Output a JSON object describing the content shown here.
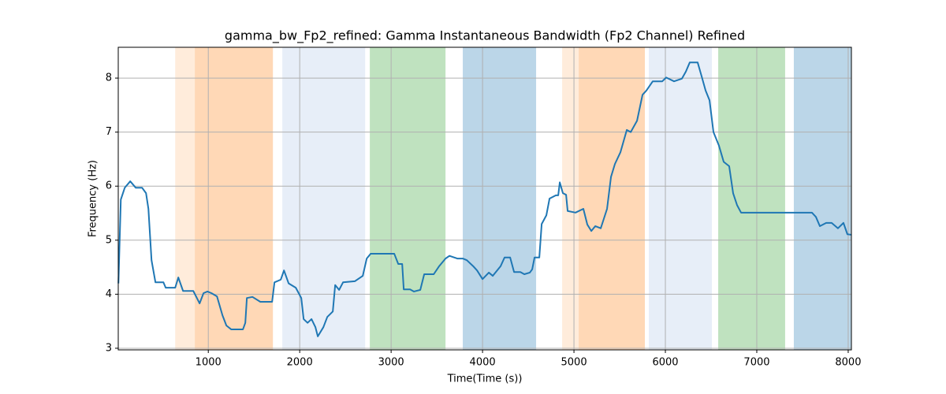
{
  "chart_data": {
    "type": "line",
    "title": "gamma_bw_Fp2_refined: Gamma Instantaneous Bandwidth (Fp2 Channel) Refined",
    "x_label": "Time(Time (s))",
    "y_label": "Frequency (Hz)",
    "xlim": [
      15,
      8035
    ],
    "ylim": [
      2.97,
      8.57
    ],
    "xticks": [
      1000,
      2000,
      3000,
      4000,
      5000,
      6000,
      7000,
      8000
    ],
    "yticks": [
      3,
      4,
      5,
      6,
      7,
      8
    ],
    "grid": true,
    "bands": [
      {
        "start": 638,
        "end": 853,
        "color": "#ff7f0e",
        "opacity": 0.15
      },
      {
        "start": 853,
        "end": 1707,
        "color": "#ff7f0e",
        "opacity": 0.3
      },
      {
        "start": 1810,
        "end": 2716,
        "color": "#aec7e8",
        "opacity": 0.3
      },
      {
        "start": 2767,
        "end": 3595,
        "color": "#2ca02c",
        "opacity": 0.3
      },
      {
        "start": 3784,
        "end": 4586,
        "color": "#1f77b4",
        "opacity": 0.3
      },
      {
        "start": 4871,
        "end": 5052,
        "color": "#ff7f0e",
        "opacity": 0.15
      },
      {
        "start": 5052,
        "end": 5776,
        "color": "#ff7f0e",
        "opacity": 0.3
      },
      {
        "start": 5819,
        "end": 6509,
        "color": "#aec7e8",
        "opacity": 0.3
      },
      {
        "start": 6578,
        "end": 7310,
        "color": "#2ca02c",
        "opacity": 0.3
      },
      {
        "start": 7405,
        "end": 8035,
        "color": "#1f77b4",
        "opacity": 0.3
      }
    ],
    "series": [
      {
        "color": "#1f77b4",
        "x": [
          17,
          43,
          86,
          146,
          207,
          276,
          319,
          345,
          379,
          422,
          509,
          534,
          638,
          672,
          724,
          836,
          905,
          948,
          991,
          1034,
          1095,
          1155,
          1198,
          1250,
          1379,
          1405,
          1422,
          1483,
          1569,
          1698,
          1724,
          1793,
          1828,
          1879,
          1957,
          2017,
          2043,
          2086,
          2129,
          2172,
          2198,
          2259,
          2302,
          2362,
          2388,
          2431,
          2474,
          2603,
          2690,
          2733,
          2776,
          2948,
          3034,
          3078,
          3121,
          3138,
          3207,
          3250,
          3319,
          3362,
          3466,
          3526,
          3595,
          3638,
          3724,
          3784,
          3828,
          3897,
          3940,
          4000,
          4069,
          4112,
          4198,
          4241,
          4302,
          4345,
          4414,
          4457,
          4517,
          4543,
          4569,
          4621,
          4647,
          4698,
          4733,
          4802,
          4828,
          4845,
          4879,
          4914,
          4931,
          5017,
          5103,
          5146,
          5190,
          5233,
          5293,
          5362,
          5405,
          5448,
          5509,
          5578,
          5621,
          5690,
          5750,
          5793,
          5862,
          5966,
          6009,
          6095,
          6181,
          6224,
          6267,
          6353,
          6397,
          6440,
          6483,
          6526,
          6586,
          6638,
          6698,
          6741,
          6784,
          6828,
          7603,
          7647,
          7690,
          7759,
          7819,
          7888,
          7948,
          7991,
          8034
        ],
        "values": [
          4.2,
          5.75,
          5.97,
          6.09,
          5.97,
          5.97,
          5.87,
          5.58,
          4.63,
          4.22,
          4.22,
          4.12,
          4.12,
          4.31,
          4.06,
          4.06,
          3.83,
          4.02,
          4.05,
          4.02,
          3.96,
          3.61,
          3.42,
          3.35,
          3.35,
          3.47,
          3.93,
          3.95,
          3.86,
          3.86,
          4.22,
          4.27,
          4.44,
          4.2,
          4.12,
          3.93,
          3.54,
          3.47,
          3.54,
          3.39,
          3.22,
          3.39,
          3.58,
          3.68,
          4.17,
          4.08,
          4.22,
          4.24,
          4.34,
          4.66,
          4.75,
          4.75,
          4.75,
          4.56,
          4.56,
          4.09,
          4.09,
          4.05,
          4.08,
          4.37,
          4.37,
          4.52,
          4.66,
          4.71,
          4.66,
          4.66,
          4.63,
          4.52,
          4.44,
          4.28,
          4.4,
          4.34,
          4.52,
          4.68,
          4.68,
          4.41,
          4.41,
          4.37,
          4.4,
          4.46,
          4.68,
          4.68,
          5.3,
          5.46,
          5.77,
          5.83,
          5.83,
          6.07,
          5.87,
          5.84,
          5.54,
          5.51,
          5.58,
          5.29,
          5.17,
          5.26,
          5.22,
          5.58,
          6.17,
          6.41,
          6.63,
          7.04,
          7.0,
          7.21,
          7.69,
          7.77,
          7.94,
          7.94,
          8.01,
          7.94,
          7.99,
          8.12,
          8.29,
          8.29,
          8.03,
          7.77,
          7.59,
          7.0,
          6.75,
          6.45,
          6.37,
          5.87,
          5.65,
          5.51,
          5.51,
          5.43,
          5.26,
          5.32,
          5.32,
          5.22,
          5.32,
          5.11,
          5.1
        ]
      }
    ]
  }
}
